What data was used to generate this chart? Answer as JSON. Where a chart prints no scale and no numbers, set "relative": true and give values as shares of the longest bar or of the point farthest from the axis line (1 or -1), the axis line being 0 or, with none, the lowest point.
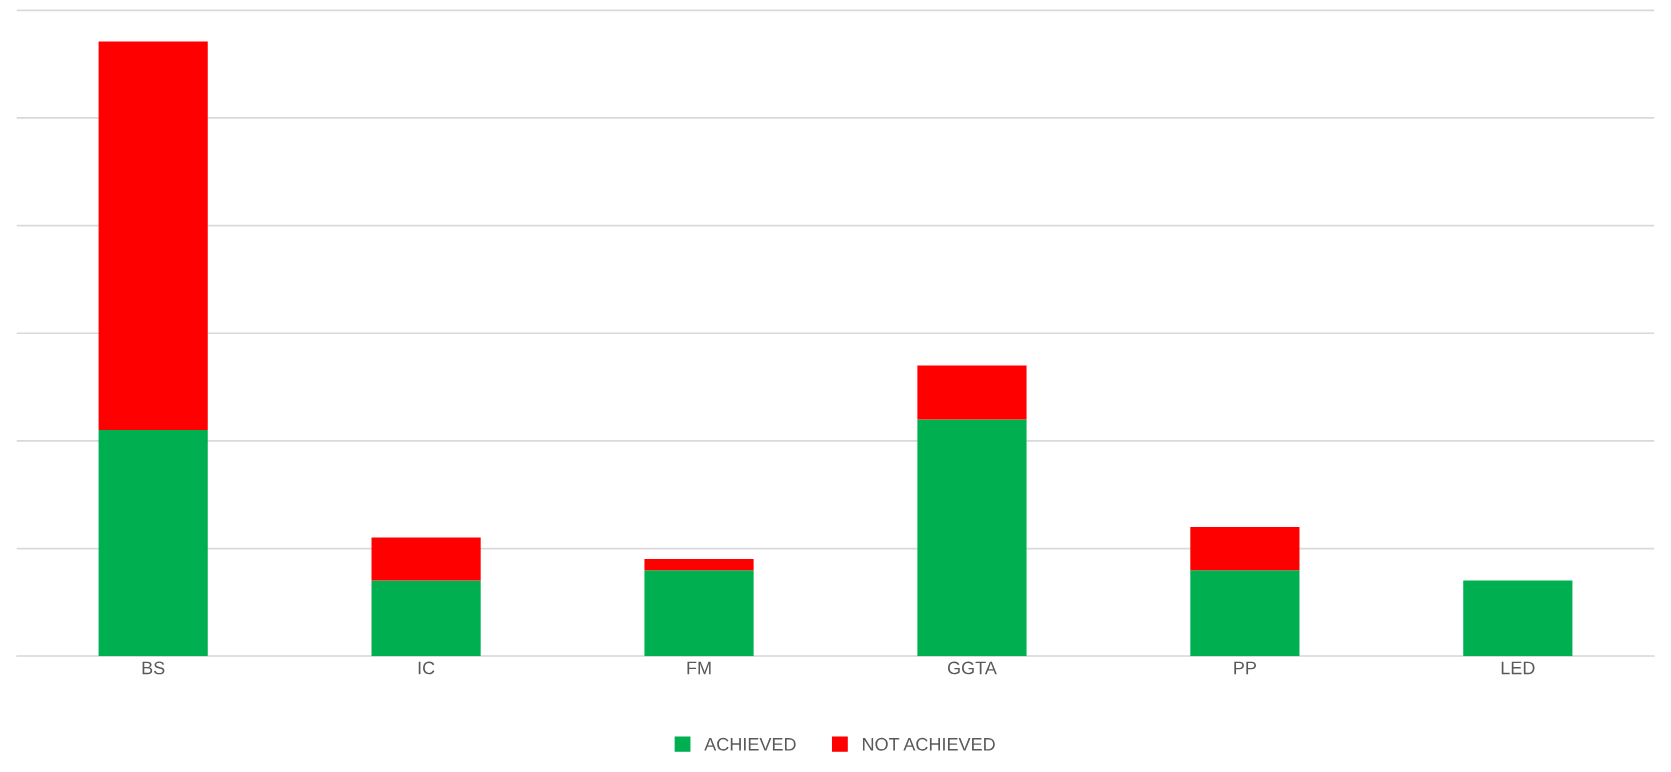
{
  "chart_data": {
    "type": "bar",
    "stacked": true,
    "relative": true,
    "grid": "y",
    "legend": "bottom",
    "categories": [
      "BS",
      "IC",
      "FM",
      "GGTA",
      "PP",
      "LED"
    ],
    "series": [
      {
        "name": "ACHIEVED",
        "color": "#00b050",
        "values": [
          0.368,
          0.123,
          0.14,
          0.385,
          0.14,
          0.123
        ]
      },
      {
        "name": "NOT ACHIEVED",
        "color": "#ff0000",
        "values": [
          0.632,
          0.07,
          0.018,
          0.088,
          0.07,
          0
        ]
      }
    ]
  }
}
